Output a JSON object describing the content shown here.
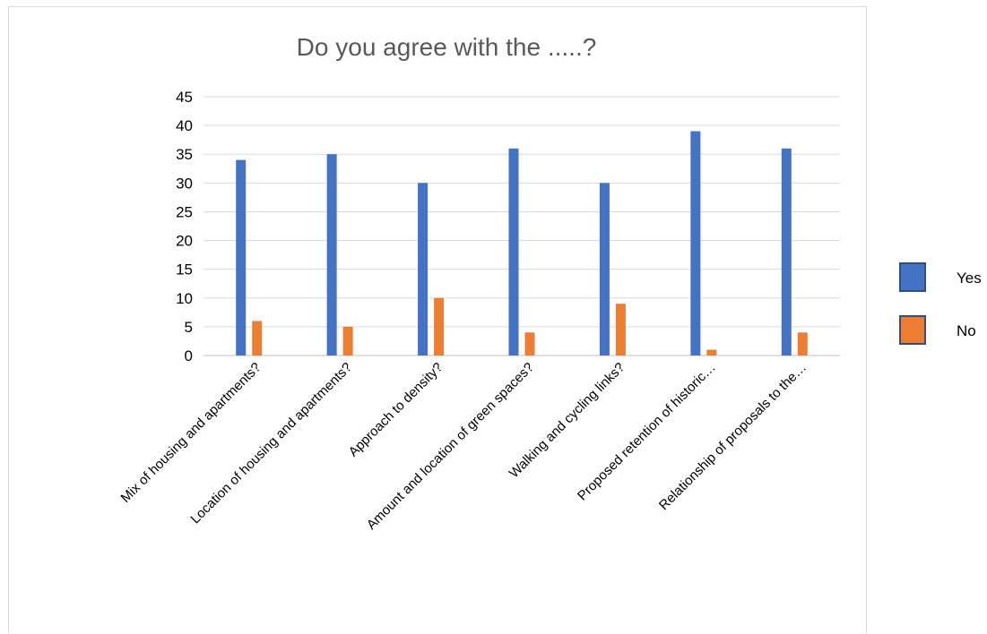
{
  "chart_data": {
    "type": "bar",
    "title": "Do you agree with the .....?",
    "xlabel": "",
    "ylabel": "",
    "ylim": [
      0,
      45
    ],
    "y_ticks": [
      "0",
      "5",
      "10",
      "15",
      "20",
      "25",
      "30",
      "35",
      "40",
      "45"
    ],
    "categories": [
      "Mix of housing and apartments?",
      "Location of housing and apartments?",
      "Approach to density?",
      "Amount and location of green spaces?",
      "Walking and cycling links?",
      "Proposed retention of historic…",
      "Relationship of proposals to the…"
    ],
    "series": [
      {
        "name": "Yes",
        "color": "#4472c4",
        "values": [
          34,
          35,
          30,
          36,
          30,
          39,
          36
        ]
      },
      {
        "name": "No",
        "color": "#ed7d31",
        "values": [
          6,
          5,
          10,
          4,
          9,
          1,
          4
        ]
      }
    ],
    "grid": true,
    "legend_position": "right"
  }
}
